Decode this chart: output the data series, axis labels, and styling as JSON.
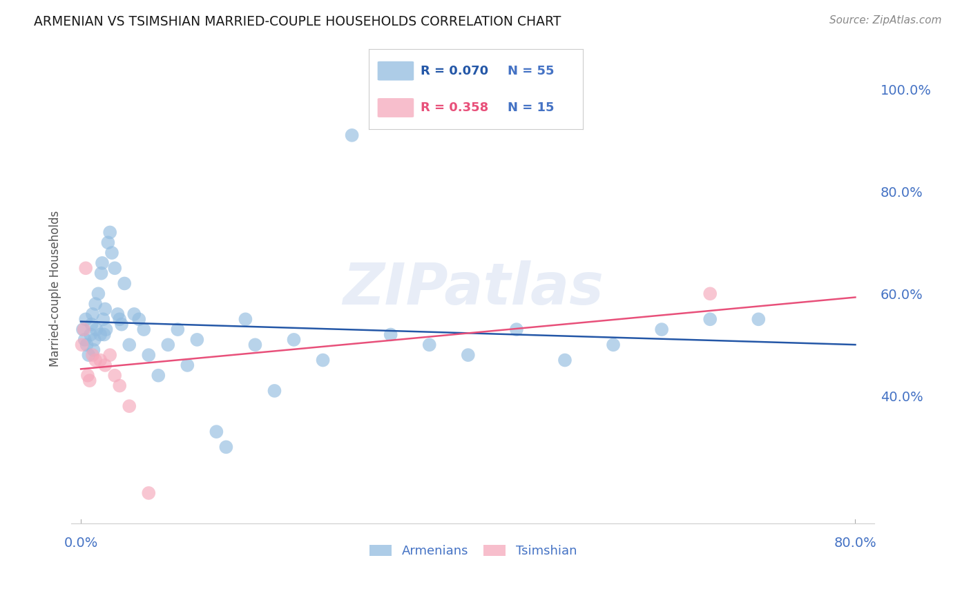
{
  "title": "ARMENIAN VS TSIMSHIAN MARRIED-COUPLE HOUSEHOLDS CORRELATION CHART",
  "source": "Source: ZipAtlas.com",
  "ylabel_label": "Married-couple Households",
  "right_yticks": [
    40.0,
    60.0,
    80.0,
    100.0
  ],
  "watermark_text": "ZIPatlas",
  "legend_blue_R": "R = 0.070",
  "legend_blue_N": "N = 55",
  "legend_pink_R": "R = 0.358",
  "legend_pink_N": "N = 15",
  "blue_color": "#92bce0",
  "pink_color": "#f5a8bb",
  "line_blue_color": "#2457a7",
  "line_pink_color": "#e8507a",
  "tick_color": "#4472c4",
  "background_color": "#ffffff",
  "grid_color": "#d8d8d8",
  "arm_x": [
    0.2,
    0.4,
    0.5,
    0.6,
    0.8,
    1.0,
    1.1,
    1.2,
    1.3,
    1.4,
    1.5,
    1.6,
    1.8,
    2.0,
    2.1,
    2.2,
    2.3,
    2.4,
    2.5,
    2.6,
    2.8,
    3.0,
    3.2,
    3.5,
    3.8,
    4.0,
    4.2,
    4.5,
    5.0,
    5.5,
    6.0,
    6.5,
    7.0,
    8.0,
    9.0,
    10.0,
    11.0,
    12.0,
    14.0,
    15.0,
    17.0,
    18.0,
    20.0,
    22.0,
    25.0,
    28.0,
    32.0,
    36.0,
    40.0,
    45.0,
    50.0,
    55.0,
    60.0,
    65.0,
    70.0
  ],
  "arm_y": [
    53.0,
    51.0,
    55.0,
    50.0,
    48.0,
    52.0,
    54.0,
    56.0,
    49.0,
    51.0,
    58.0,
    53.0,
    60.0,
    52.0,
    64.0,
    66.0,
    55.0,
    52.0,
    57.0,
    53.0,
    70.0,
    72.0,
    68.0,
    65.0,
    56.0,
    55.0,
    54.0,
    62.0,
    50.0,
    56.0,
    55.0,
    53.0,
    48.0,
    44.0,
    50.0,
    53.0,
    46.0,
    51.0,
    33.0,
    30.0,
    55.0,
    50.0,
    41.0,
    51.0,
    47.0,
    91.0,
    52.0,
    50.0,
    48.0,
    53.0,
    47.0,
    50.0,
    53.0,
    55.0,
    55.0
  ],
  "tsim_x": [
    0.1,
    0.3,
    0.5,
    0.7,
    0.9,
    1.2,
    1.5,
    2.0,
    2.5,
    3.0,
    3.5,
    4.0,
    5.0,
    7.0,
    65.0
  ],
  "tsim_y": [
    50.0,
    53.0,
    65.0,
    44.0,
    43.0,
    48.0,
    47.0,
    47.0,
    46.0,
    48.0,
    44.0,
    42.0,
    38.0,
    21.0,
    60.0
  ],
  "xmin": -1.0,
  "xmax": 82.0,
  "ymin": 15.0,
  "ymax": 107.0
}
